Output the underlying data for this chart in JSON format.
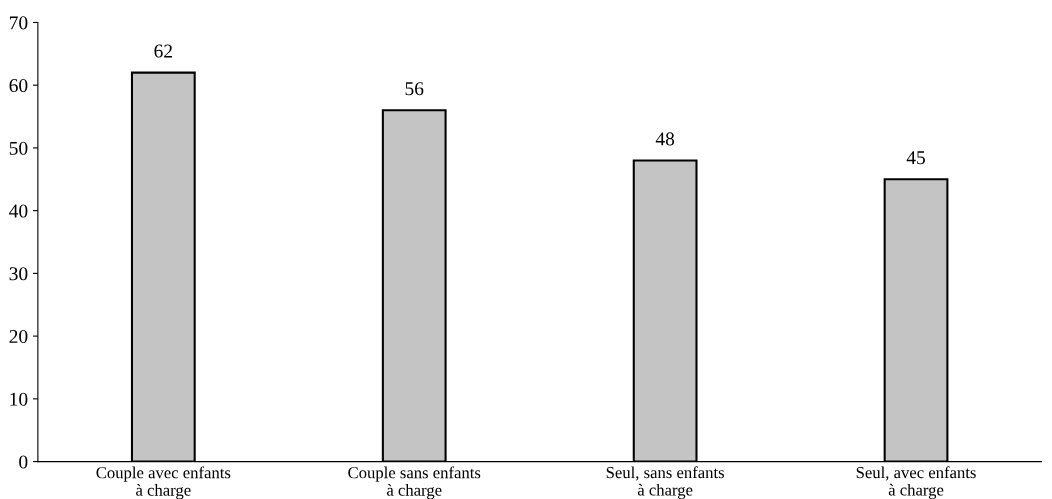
{
  "chart_data": {
    "type": "bar",
    "categories": [
      "Couple avec enfants\nà charge",
      "Couple sans enfants\nà charge",
      "Seul, sans enfants\nà charge",
      "Seul, avec enfants\nà charge"
    ],
    "values": [
      62,
      56,
      48,
      45
    ],
    "color": "#c4c4c4",
    "ylim": [
      0,
      70
    ],
    "yticks": [
      0,
      10,
      20,
      30,
      40,
      50,
      60,
      70
    ],
    "grid": false,
    "data_labels": true
  }
}
